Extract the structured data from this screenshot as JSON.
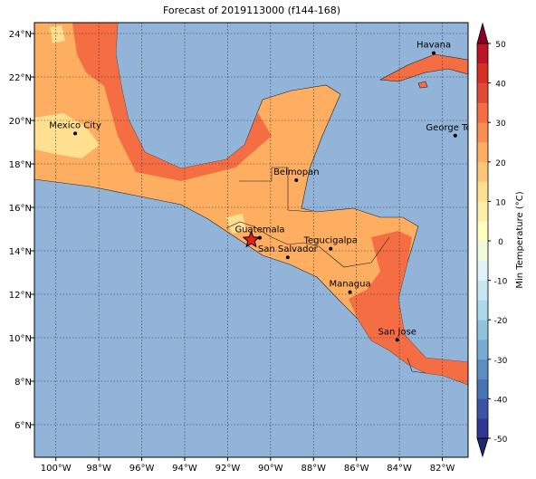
{
  "title": "Forecast of 2019113000 (f144-168)",
  "map": {
    "lon_range": [
      -101,
      -80.8
    ],
    "lat_range": [
      4.5,
      24.5
    ],
    "lon_ticks": [
      {
        "value": -100,
        "label": "100°W"
      },
      {
        "value": -98,
        "label": "98°W"
      },
      {
        "value": -96,
        "label": "96°W"
      },
      {
        "value": -94,
        "label": "94°W"
      },
      {
        "value": -92,
        "label": "92°W"
      },
      {
        "value": -90,
        "label": "90°W"
      },
      {
        "value": -88,
        "label": "88°W"
      },
      {
        "value": -86,
        "label": "86°W"
      },
      {
        "value": -84,
        "label": "84°W"
      },
      {
        "value": -82,
        "label": "82°W"
      }
    ],
    "lat_ticks": [
      {
        "value": 6,
        "label": "6°N"
      },
      {
        "value": 8,
        "label": "8°N"
      },
      {
        "value": 10,
        "label": "10°N"
      },
      {
        "value": 12,
        "label": "12°N"
      },
      {
        "value": 14,
        "label": "14°N"
      },
      {
        "value": 16,
        "label": "16°N"
      },
      {
        "value": 18,
        "label": "18°N"
      },
      {
        "value": 20,
        "label": "20°N"
      },
      {
        "value": 22,
        "label": "22°N"
      },
      {
        "value": 24,
        "label": "24°N"
      }
    ],
    "grid": true,
    "cities": [
      {
        "name": "Havana",
        "lon": -82.4,
        "lat": 23.1
      },
      {
        "name": "Mexico City",
        "lon": -99.1,
        "lat": 19.4
      },
      {
        "name": "George Town",
        "lon": -81.4,
        "lat": 19.3
      },
      {
        "name": "Belmopan",
        "lon": -88.8,
        "lat": 17.25
      },
      {
        "name": "Guatemala",
        "lon": -90.5,
        "lat": 14.6
      },
      {
        "name": "San Salvador",
        "lon": -89.2,
        "lat": 13.7
      },
      {
        "name": "Tegucigalpa",
        "lon": -87.2,
        "lat": 14.1
      },
      {
        "name": "Managua",
        "lon": -86.3,
        "lat": 12.1
      },
      {
        "name": "San Jose",
        "lon": -84.1,
        "lat": 9.9
      }
    ],
    "event": {
      "lon": -90.9,
      "lat": 14.5,
      "color": "#e8211c"
    }
  },
  "colorbar": {
    "label": "Min Temperature (°C)",
    "lim": [
      -50,
      50
    ],
    "ticks": [
      -50,
      -40,
      -30,
      -20,
      -10,
      0,
      10,
      20,
      30,
      40,
      50
    ],
    "colors": [
      "#313695",
      "#3a54a4",
      "#4575b4",
      "#5b8fc2",
      "#74add1",
      "#8fc3dd",
      "#abd9e9",
      "#c7e6f0",
      "#e0f3f8",
      "#f0f9db",
      "#ffffbf",
      "#fff0a8",
      "#fee090",
      "#fdc677",
      "#fdae61",
      "#f98e52",
      "#f46d43",
      "#e34a33",
      "#d73027",
      "#bb1526"
    ],
    "extend_colors": [
      "#1f2a6b",
      "#8a0026"
    ]
  }
}
